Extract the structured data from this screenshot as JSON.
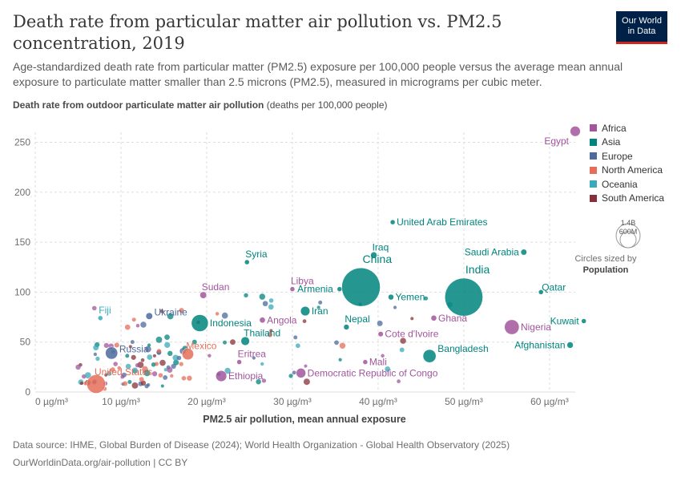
{
  "header": {
    "title": "Death rate from particular matter air pollution vs. PM2.5 concentration, 2019",
    "subtitle": "Age-standardized death rate from particular matter (PM2.5) exposure per 100,000 people versus the average mean annual exposure to particulate matter smaller than 2.5 microns (PM2.5), measured in micrograms per cubic meter.",
    "logo_line1": "Our World",
    "logo_line2": "in Data"
  },
  "colors": {
    "Africa": "#a2559c",
    "Asia": "#00847e",
    "Europe": "#4c6a9c",
    "North America": "#e56e5a",
    "Oceania": "#38aaba",
    "South America": "#883039"
  },
  "chart_data": {
    "type": "scatter",
    "ylabel_bold": "Death rate from outdoor particulate matter air pollution",
    "ylabel_unit": "(deaths per 100,000 people)",
    "xlabel": "PM2.5 air pollution, mean annual exposure",
    "xlim": [
      0,
      63
    ],
    "ylim": [
      0,
      260
    ],
    "xticks": [
      0,
      10,
      20,
      30,
      40,
      50,
      60
    ],
    "xtick_labels": [
      "0 µg/m³",
      "10 µg/m³",
      "20 µg/m³",
      "30 µg/m³",
      "40 µg/m³",
      "50 µg/m³",
      "60 µg/m³"
    ],
    "yticks": [
      0,
      50,
      100,
      150,
      200,
      250
    ],
    "grid": true,
    "legend": [
      "Africa",
      "Asia",
      "Europe",
      "North America",
      "Oceania",
      "South America"
    ],
    "legend_position": "right",
    "size_legend": {
      "max_label": "1.4B",
      "mid_label": "600M",
      "note": "Circles sized by",
      "note_bold": "Population"
    },
    "points": [
      {
        "label": "Egypt",
        "region": "Africa",
        "x": 63,
        "y": 261,
        "pop": 100
      },
      {
        "label": "United Arab Emirates",
        "region": "Asia",
        "x": 41.7,
        "y": 170,
        "pop": 9
      },
      {
        "label": "Saudi Arabia",
        "region": "Asia",
        "x": 57,
        "y": 140,
        "pop": 34
      },
      {
        "label": "Iraq",
        "region": "Asia",
        "x": 39.5,
        "y": 137,
        "pop": 39
      },
      {
        "label": "Syria",
        "region": "Asia",
        "x": 24.7,
        "y": 130,
        "pop": 17
      },
      {
        "label": "China",
        "region": "Asia",
        "x": 38,
        "y": 105,
        "pop": 1420
      },
      {
        "label": "India",
        "region": "Asia",
        "x": 50,
        "y": 95,
        "pop": 1380
      },
      {
        "label": "Qatar",
        "region": "Asia",
        "x": 59,
        "y": 100,
        "pop": 3
      },
      {
        "label": "Libya",
        "region": "Africa",
        "x": 30,
        "y": 103,
        "pop": 7
      },
      {
        "label": "Sudan",
        "region": "Africa",
        "x": 19.6,
        "y": 97,
        "pop": 43
      },
      {
        "label": "Armenia",
        "region": "Asia",
        "x": 35.5,
        "y": 103,
        "pop": 3
      },
      {
        "label": "Yemen",
        "region": "Asia",
        "x": 41.5,
        "y": 95,
        "pop": 30
      },
      {
        "label": "Iran",
        "region": "Asia",
        "x": 31.5,
        "y": 81,
        "pop": 84
      },
      {
        "label": "Ghana",
        "region": "Africa",
        "x": 46.5,
        "y": 74,
        "pop": 31
      },
      {
        "label": "Nigeria",
        "region": "Africa",
        "x": 55.6,
        "y": 65,
        "pop": 206
      },
      {
        "label": "Kuwait",
        "region": "Asia",
        "x": 64,
        "y": 71,
        "pop": 4
      },
      {
        "label": "Angola",
        "region": "Africa",
        "x": 26.5,
        "y": 72,
        "pop": 32
      },
      {
        "label": "Indonesia",
        "region": "Asia",
        "x": 19.2,
        "y": 69,
        "pop": 273
      },
      {
        "label": "Nepal",
        "region": "Asia",
        "x": 36.3,
        "y": 65,
        "pop": 29
      },
      {
        "label": "Cote d'Ivoire",
        "region": "Africa",
        "x": 40.3,
        "y": 58,
        "pop": 26
      },
      {
        "label": "Fiji",
        "region": "Oceania",
        "x": 7.6,
        "y": 74,
        "pop": 1
      },
      {
        "label": "Ukraine",
        "region": "Europe",
        "x": 13.3,
        "y": 76,
        "pop": 44
      },
      {
        "label": "Thailand",
        "region": "Asia",
        "x": 24.5,
        "y": 51,
        "pop": 70
      },
      {
        "label": "Afghanistan",
        "region": "Asia",
        "x": 62.4,
        "y": 47,
        "pop": 38
      },
      {
        "label": "Bangladesh",
        "region": "Asia",
        "x": 46,
        "y": 36,
        "pop": 164
      },
      {
        "label": "Eritrea",
        "region": "Africa",
        "x": 23.8,
        "y": 30,
        "pop": 4
      },
      {
        "label": "Mali",
        "region": "Africa",
        "x": 38.5,
        "y": 30,
        "pop": 20
      },
      {
        "label": "Russia",
        "region": "Europe",
        "x": 8.9,
        "y": 39,
        "pop": 145
      },
      {
        "label": "Mexico",
        "region": "North America",
        "x": 17.8,
        "y": 38,
        "pop": 128
      },
      {
        "label": "Democratic Republic of Congo",
        "region": "Africa",
        "x": 31,
        "y": 19,
        "pop": 89
      },
      {
        "label": "Ethiopia",
        "region": "Africa",
        "x": 21.7,
        "y": 16,
        "pop": 115
      },
      {
        "label": "United States",
        "region": "North America",
        "x": 7.1,
        "y": 8,
        "pop": 331
      }
    ]
  },
  "source": {
    "line1": "Data source: IHME, Global Burden of Disease (2024); World Health Organization - Global Health Observatory (2025)",
    "line2": "OurWorldinData.org/air-pollution | CC BY"
  }
}
